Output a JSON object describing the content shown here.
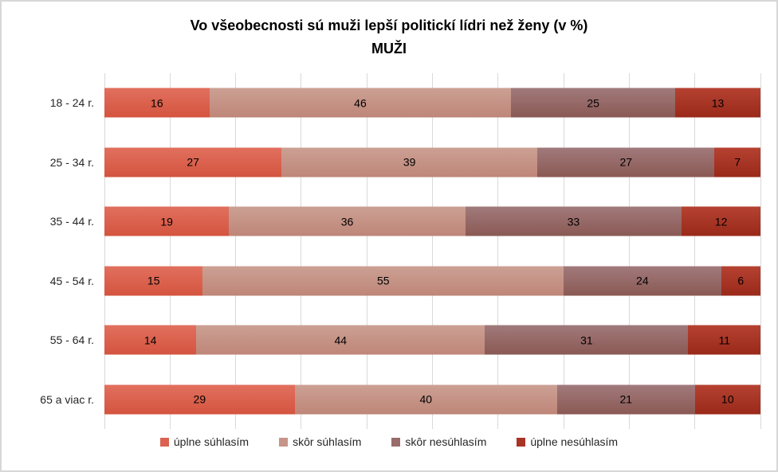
{
  "figure": {
    "title": "Vo všeobecnosti sú muži lepší politickí lídri než ženy (v %)",
    "subtitle": "MUŽI"
  },
  "chart_data": {
    "type": "bar",
    "variant": "horizontal-stacked",
    "title": "Vo všeobecnosti sú muži lepší politickí lídri než ženy (v %)",
    "subtitle": "MUŽI",
    "xlabel": "",
    "ylabel": "",
    "xlim": [
      0,
      100
    ],
    "unit": "%",
    "gridlines": {
      "show": true,
      "interval": 10,
      "color": "#d9d9d9"
    },
    "legend_position": "bottom",
    "categories": [
      "18 - 24 r.",
      "25 - 34 r.",
      "35 - 44 r.",
      "45 - 54 r.",
      "55 - 64 r.",
      "65 a viac r."
    ],
    "series": [
      {
        "name": "úplne súhlasím",
        "color": "#DB6250",
        "color_top": "#E1705E",
        "color_bottom": "#D4543F",
        "values": [
          16,
          27,
          19,
          15,
          14,
          29
        ]
      },
      {
        "name": "skôr súhlasím",
        "color": "#C69488",
        "color_top": "#CCA094",
        "color_bottom": "#BE8678",
        "values": [
          46,
          39,
          36,
          55,
          44,
          40
        ]
      },
      {
        "name": "skôr nesúhlasím",
        "color": "#976C6A",
        "color_top": "#A17A7B",
        "color_bottom": "#8A5954",
        "values": [
          25,
          27,
          33,
          24,
          31,
          21
        ]
      },
      {
        "name": "úplne nesúhlasím",
        "color": "#A93425",
        "color_top": "#B54231",
        "color_bottom": "#9A291A",
        "values": [
          13,
          7,
          12,
          6,
          11,
          10
        ]
      }
    ]
  }
}
